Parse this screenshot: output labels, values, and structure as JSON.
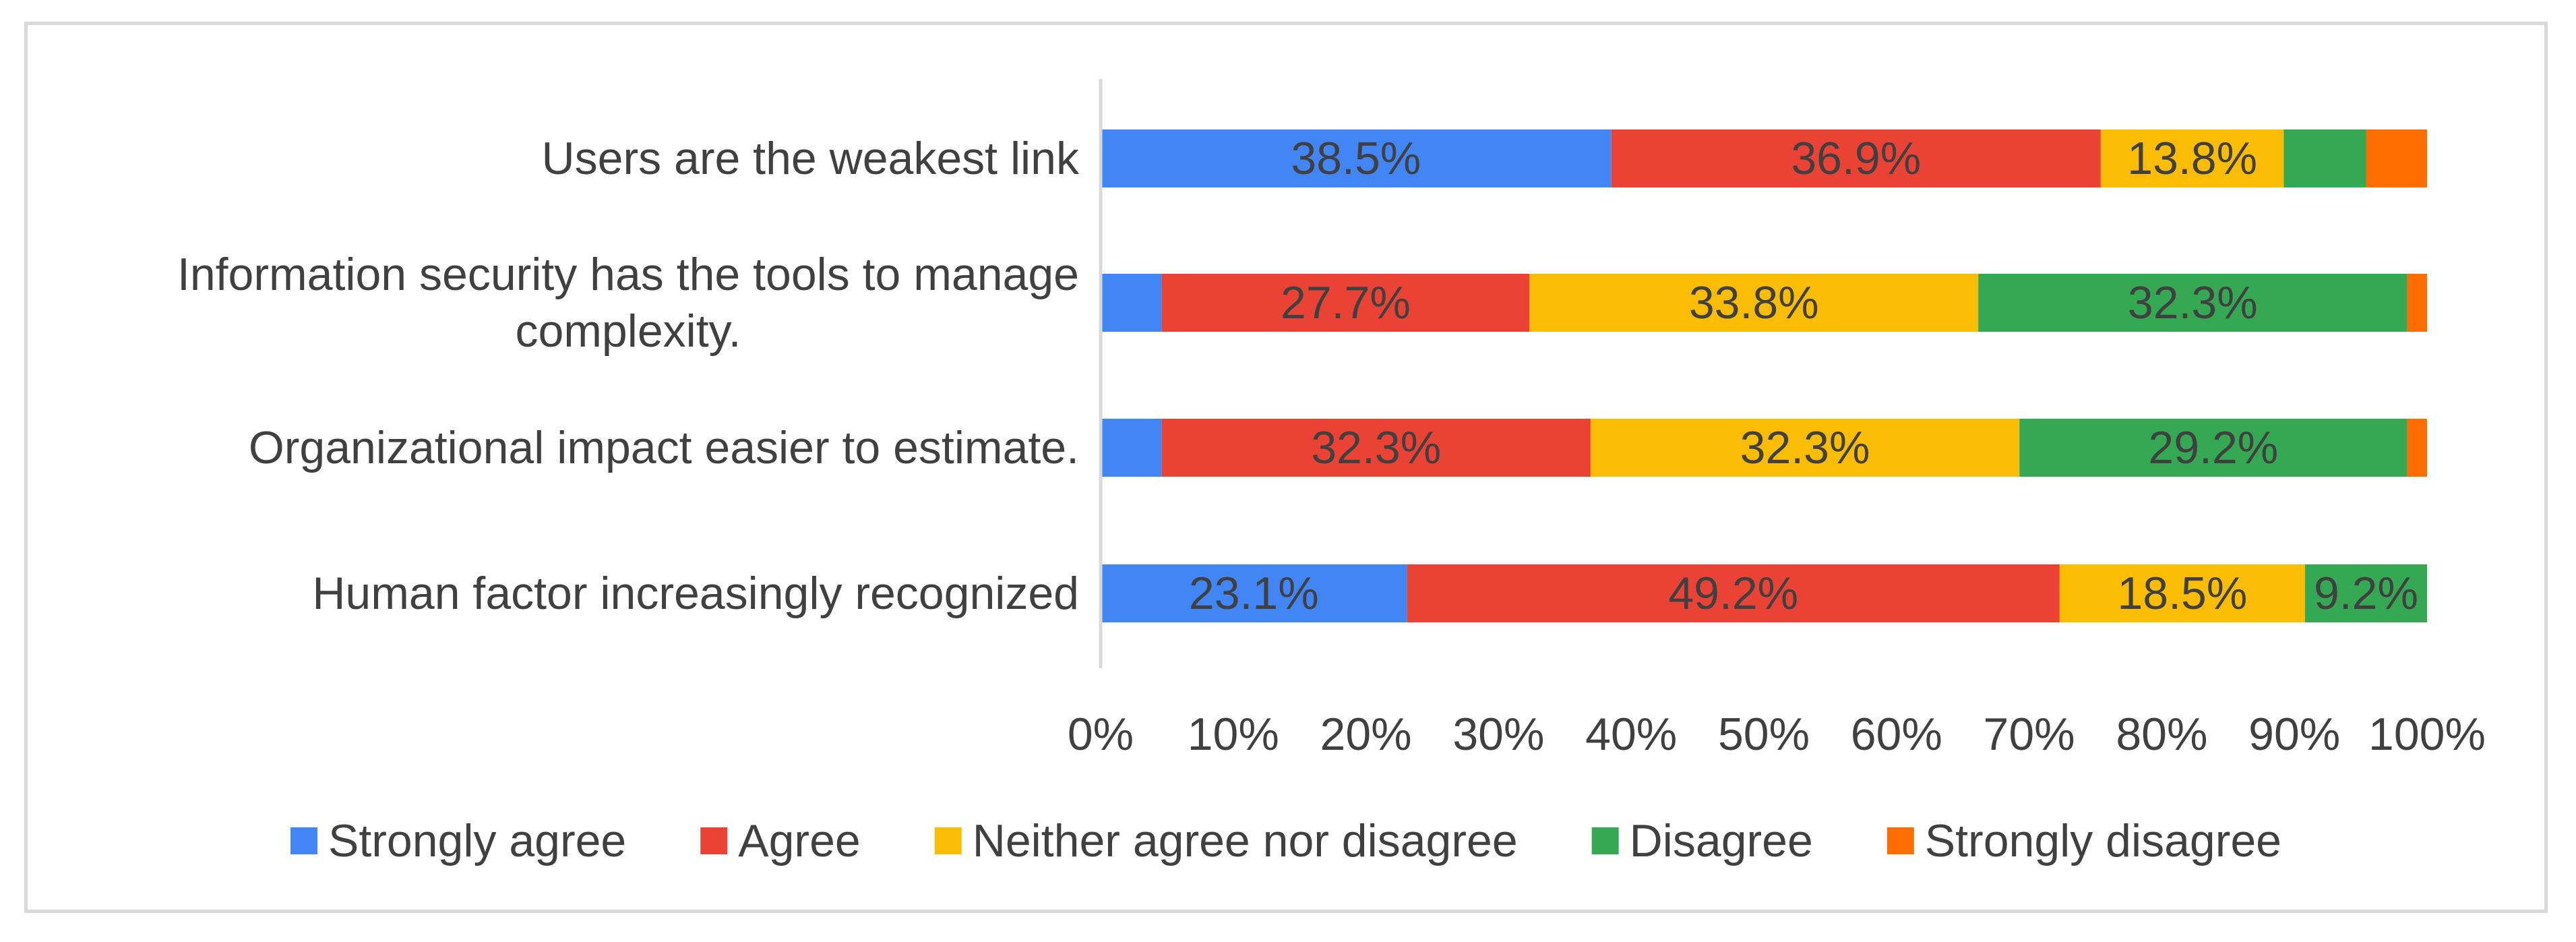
{
  "chart_data": {
    "type": "bar",
    "orientation": "horizontal",
    "stacked": true,
    "percent_stacked": true,
    "title": "",
    "xlabel": "",
    "ylabel": "",
    "xlim": [
      0,
      100
    ],
    "x_ticks": [
      "0%",
      "10%",
      "20%",
      "30%",
      "40%",
      "50%",
      "60%",
      "70%",
      "80%",
      "90%",
      "100%"
    ],
    "grid": false,
    "legend_position": "bottom",
    "categories": [
      [
        "Users are the weakest link"
      ],
      [
        "Information security has the tools to manage",
        "complexity."
      ],
      [
        "Organizational impact easier to estimate."
      ],
      [
        "Human factor increasingly recognized"
      ]
    ],
    "series": [
      {
        "name": "Strongly agree",
        "color": "#4285F4",
        "values": [
          38.5,
          4.6,
          4.6,
          23.1
        ],
        "labels": [
          "38.5%",
          "",
          "",
          "23.1%"
        ]
      },
      {
        "name": "Agree",
        "color": "#EA4335",
        "values": [
          36.9,
          27.7,
          32.3,
          49.2
        ],
        "labels": [
          "36.9%",
          "27.7%",
          "32.3%",
          "49.2%"
        ]
      },
      {
        "name": "Neither agree nor disagree",
        "color": "#FBBC04",
        "values": [
          13.8,
          33.8,
          32.3,
          18.5
        ],
        "labels": [
          "13.8%",
          "33.8%",
          "32.3%",
          "18.5%"
        ]
      },
      {
        "name": "Disagree",
        "color": "#34A853",
        "values": [
          6.2,
          32.3,
          29.2,
          9.2
        ],
        "labels": [
          "",
          "32.3%",
          "29.2%",
          "9.2%"
        ]
      },
      {
        "name": "Strongly disagree",
        "color": "#FF6D01",
        "values": [
          4.6,
          1.5,
          1.5,
          0
        ],
        "labels": [
          "",
          "",
          "",
          ""
        ]
      }
    ]
  }
}
